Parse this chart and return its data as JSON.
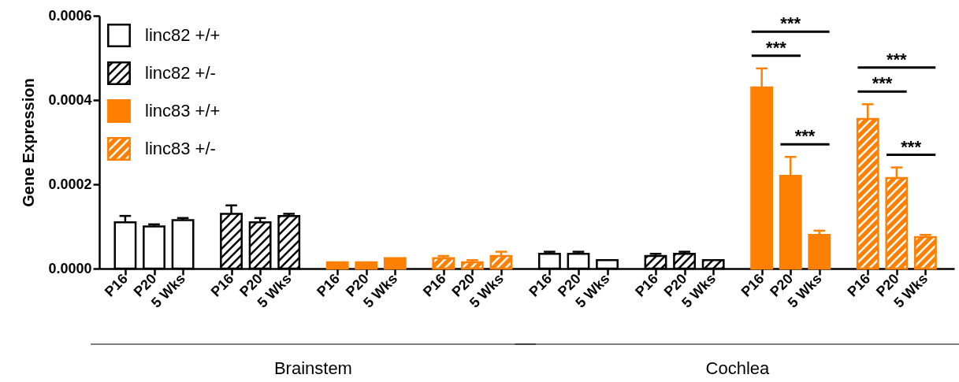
{
  "chart_data": {
    "type": "bar",
    "ylabel": "Gene Expression",
    "categories": [
      "P16",
      "P20",
      "5 Wks",
      "P16",
      "P20",
      "5 Wks",
      "P16",
      "P20",
      "5 Wks",
      "P16",
      "P20",
      "5 Wks",
      "P16",
      "P20",
      "5 Wks",
      "P16",
      "P20",
      "5 Wks",
      "P16",
      "P20",
      "5 Wks",
      "P16",
      "P20",
      "5 Wks"
    ],
    "series": [
      {
        "name": "linc82 +/+",
        "color": "#000000",
        "values": [
          0.00011,
          0.0001,
          0.000115,
          null,
          null,
          null,
          null,
          null,
          null,
          null,
          null,
          null,
          3.5e-05,
          3.5e-05,
          2e-05,
          null,
          null,
          null,
          null,
          null,
          null,
          null,
          null,
          null
        ],
        "errors": [
          [
            0.00011,
            0.000125
          ],
          [
            0.0001,
            0.000105
          ],
          [
            0.000115,
            0.00012
          ],
          null,
          null,
          null,
          null,
          null,
          null,
          null,
          null,
          null,
          [
            3.5e-05,
            4e-05
          ],
          [
            3.5e-05,
            4e-05
          ],
          null,
          null,
          null,
          null,
          null,
          null,
          null,
          null,
          null,
          null
        ]
      },
      {
        "name": "linc82 +/-",
        "color": "#000000",
        "values": [
          null,
          null,
          null,
          0.00013,
          0.00011,
          0.000125,
          null,
          null,
          null,
          null,
          null,
          null,
          null,
          null,
          null,
          3e-05,
          3.5e-05,
          2e-05,
          null,
          null,
          null,
          null,
          null,
          null
        ],
        "errors": [
          null,
          null,
          null,
          [
            0.00013,
            0.00015
          ],
          [
            0.00011,
            0.00012
          ],
          [
            0.000125,
            0.00013
          ],
          null,
          null,
          null,
          null,
          null,
          null,
          null,
          null,
          null,
          [
            3e-05,
            3.5e-05
          ],
          [
            3.5e-05,
            4e-05
          ],
          null,
          null,
          null,
          null,
          null,
          null,
          null
        ]
      },
      {
        "name": "linc83 +/+",
        "color": "#ff8000",
        "values": [
          null,
          null,
          null,
          null,
          null,
          null,
          1.5e-05,
          1.5e-05,
          2.5e-05,
          null,
          null,
          null,
          null,
          null,
          null,
          null,
          null,
          null,
          0.00043,
          0.00022,
          8e-05,
          null,
          null,
          null
        ],
        "errors": [
          null,
          null,
          null,
          null,
          null,
          null,
          null,
          null,
          null,
          null,
          null,
          null,
          null,
          null,
          null,
          null,
          null,
          null,
          [
            0.00043,
            0.000475
          ],
          [
            0.00022,
            0.000265
          ],
          [
            8e-05,
            9e-05
          ],
          null,
          null,
          null
        ]
      },
      {
        "name": "linc83 +/-",
        "color": "#ff8000",
        "values": [
          null,
          null,
          null,
          null,
          null,
          null,
          null,
          null,
          null,
          2.5e-05,
          1.5e-05,
          3e-05,
          null,
          null,
          null,
          null,
          null,
          null,
          null,
          null,
          null,
          0.000355,
          0.000215,
          7.5e-05
        ],
        "errors": [
          null,
          null,
          null,
          null,
          null,
          null,
          null,
          null,
          null,
          [
            2.5e-05,
            3e-05
          ],
          [
            1.5e-05,
            2e-05
          ],
          [
            3e-05,
            4e-05
          ],
          null,
          null,
          null,
          null,
          null,
          null,
          null,
          null,
          null,
          [
            0.000355,
            0.00039
          ],
          [
            0.000215,
            0.00024
          ],
          [
            7.5e-05,
            8e-05
          ]
        ]
      }
    ],
    "ylim": [
      0,
      0.0006
    ],
    "yticks": [
      {
        "value": 0,
        "label": "0.0000"
      },
      {
        "value": 0.0002,
        "label": "0.0002"
      },
      {
        "value": 0.0004,
        "label": "0.0004"
      },
      {
        "value": 0.0006,
        "label": "0.0006"
      }
    ],
    "annotations": [
      "***",
      "***",
      "***",
      "***",
      "***",
      "***",
      "Brainstem",
      "Cochlea"
    ],
    "legend": "top left",
    "grid": false
  }
}
